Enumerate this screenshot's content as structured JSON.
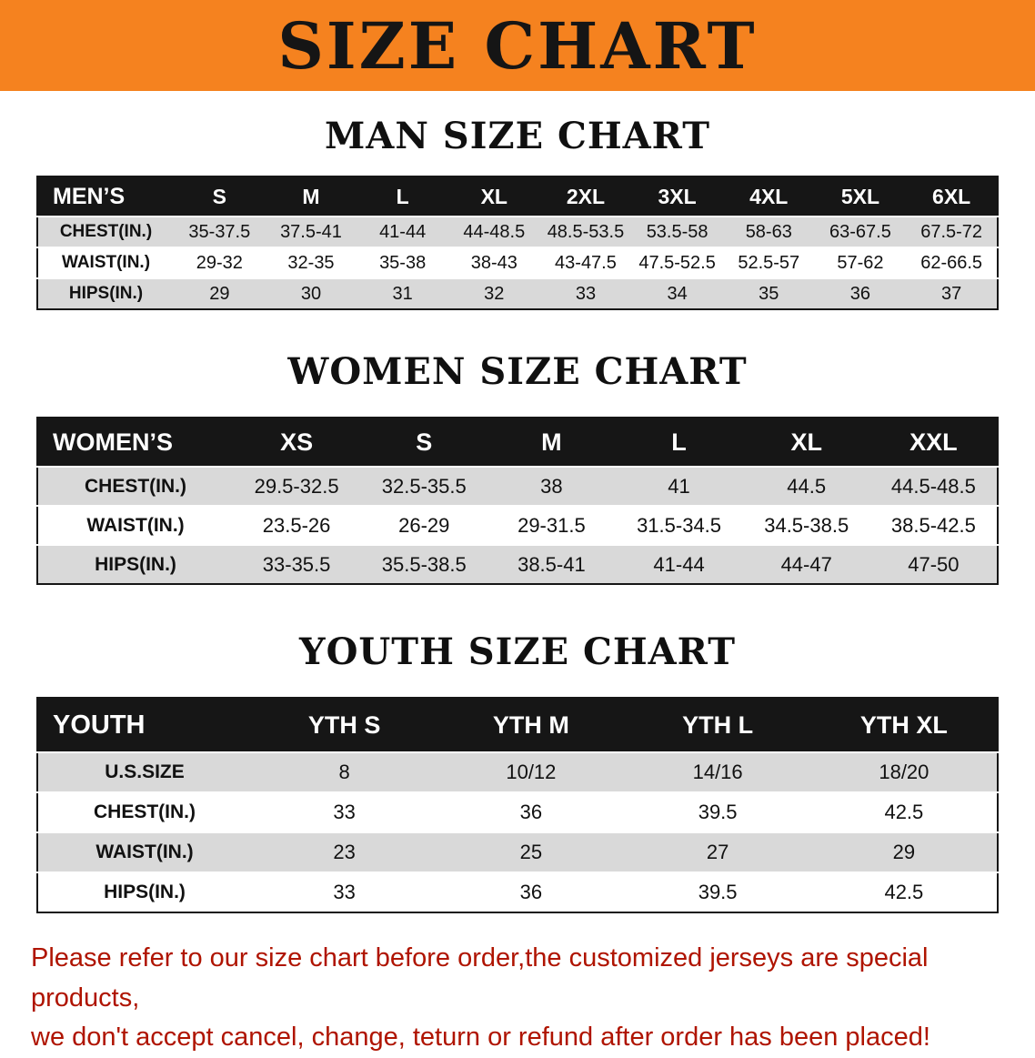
{
  "banner": {
    "title": "SIZE CHART",
    "bg_color": "#F5821F",
    "text_color": "#151515"
  },
  "chart_data": [
    {
      "type": "table",
      "title": "MAN SIZE CHART",
      "columns": [
        "MEN’S",
        "S",
        "M",
        "L",
        "XL",
        "2XL",
        "3XL",
        "4XL",
        "5XL",
        "6XL"
      ],
      "rows": [
        [
          "CHEST(IN.)",
          "35-37.5",
          "37.5-41",
          "41-44",
          "44-48.5",
          "48.5-53.5",
          "53.5-58",
          "58-63",
          "63-67.5",
          "67.5-72"
        ],
        [
          "WAIST(IN.)",
          "29-32",
          "32-35",
          "35-38",
          "38-43",
          "43-47.5",
          "47.5-52.5",
          "52.5-57",
          "57-62",
          "62-66.5"
        ],
        [
          "HIPS(IN.)",
          "29",
          "30",
          "31",
          "32",
          "33",
          "34",
          "35",
          "36",
          "37"
        ]
      ]
    },
    {
      "type": "table",
      "title": "WOMEN SIZE CHART",
      "columns": [
        "WOMEN’S",
        "XS",
        "S",
        "M",
        "L",
        "XL",
        "XXL"
      ],
      "rows": [
        [
          "CHEST(IN.)",
          "29.5-32.5",
          "32.5-35.5",
          "38",
          "41",
          "44.5",
          "44.5-48.5"
        ],
        [
          "WAIST(IN.)",
          "23.5-26",
          "26-29",
          "29-31.5",
          "31.5-34.5",
          "34.5-38.5",
          "38.5-42.5"
        ],
        [
          "HIPS(IN.)",
          "33-35.5",
          "35.5-38.5",
          "38.5-41",
          "41-44",
          "44-47",
          "47-50"
        ]
      ]
    },
    {
      "type": "table",
      "title": "YOUTH SIZE CHART",
      "columns": [
        "YOUTH",
        "YTH S",
        "YTH M",
        "YTH L",
        "YTH XL"
      ],
      "rows": [
        [
          "U.S.SIZE",
          "8",
          "10/12",
          "14/16",
          "18/20"
        ],
        [
          "CHEST(IN.)",
          "33",
          "36",
          "39.5",
          "42.5"
        ],
        [
          "WAIST(IN.)",
          "23",
          "25",
          "27",
          "29"
        ],
        [
          "HIPS(IN.)",
          "33",
          "36",
          "39.5",
          "42.5"
        ]
      ]
    }
  ],
  "footer": {
    "line1": "Please refer to our size chart before order,the customized jerseys are special products,",
    "line2": "we don't accept cancel, change, teturn or refund after order has been placed!",
    "text_color": "#AF1400"
  }
}
